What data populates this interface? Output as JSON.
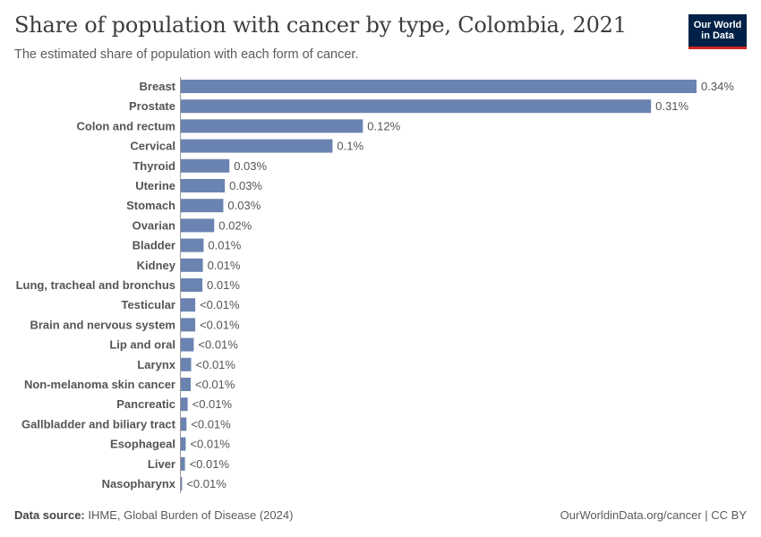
{
  "header": {
    "title": "Share of population with cancer by type, Colombia, 2021",
    "subtitle": "The estimated share of population with each form of cancer."
  },
  "logo": {
    "line1": "Our World",
    "line2": "in Data"
  },
  "footer": {
    "source_label": "Data source:",
    "source_text": "IHME, Global Burden of Disease (2024)",
    "right_text": "OurWorldinData.org/cancer | CC BY"
  },
  "colors": {
    "bar": "#6b83b0",
    "logo_bg": "#002147",
    "logo_accent": "#ce261e"
  },
  "chart_data": {
    "type": "bar",
    "orientation": "horizontal",
    "title": "Share of population with cancer by type, Colombia, 2021",
    "subtitle": "The estimated share of population with each form of cancer.",
    "unit": "%",
    "categories": [
      "Breast",
      "Prostate",
      "Colon and rectum",
      "Cervical",
      "Thyroid",
      "Uterine",
      "Stomach",
      "Ovarian",
      "Bladder",
      "Kidney",
      "Lung, tracheal and bronchus",
      "Testicular",
      "Brain and nervous system",
      "Lip and oral",
      "Larynx",
      "Non-melanoma skin cancer",
      "Pancreatic",
      "Gallbladder and biliary tract",
      "Esophageal",
      "Liver",
      "Nasopharynx"
    ],
    "values": [
      0.34,
      0.31,
      0.12,
      0.1,
      0.032,
      0.029,
      0.028,
      0.022,
      0.015,
      0.0145,
      0.0142,
      0.0095,
      0.0095,
      0.0085,
      0.0068,
      0.0065,
      0.0045,
      0.0037,
      0.0032,
      0.0027,
      0.0008
    ],
    "value_labels": [
      "0.34%",
      "0.31%",
      "0.12%",
      "0.1%",
      "0.03%",
      "0.03%",
      "0.03%",
      "0.02%",
      "0.01%",
      "0.01%",
      "0.01%",
      "<0.01%",
      "<0.01%",
      "<0.01%",
      "<0.01%",
      "<0.01%",
      "<0.01%",
      "<0.01%",
      "<0.01%",
      "<0.01%",
      "<0.01%"
    ],
    "xlim": [
      0,
      0.34
    ],
    "grid": false,
    "legend": "none"
  }
}
